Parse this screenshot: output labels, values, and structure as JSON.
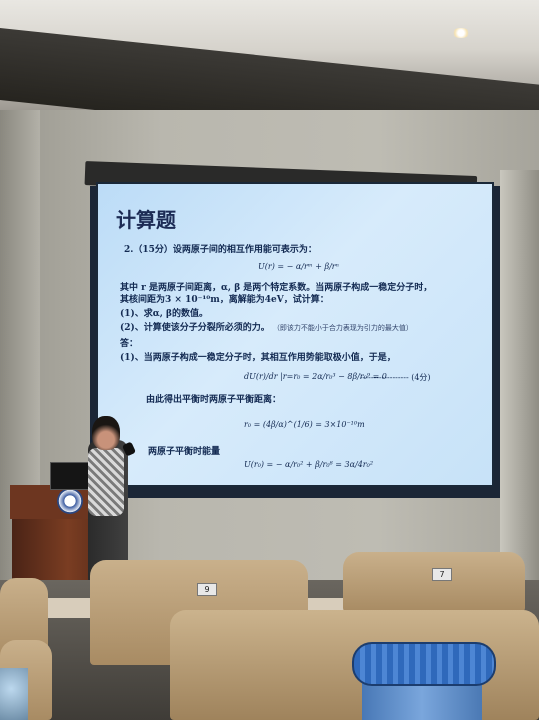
{
  "slide": {
    "title": "计算题",
    "problem": "2.（15分）设两原子间的相互作用能可表示为：",
    "eq1": "U(r) = − α/rᵐ + β/rⁿ",
    "line1": "其中 r 是两原子间距离，α, β 是两个特定系数。当两原子构成一稳定分子时，",
    "line2": "其核间距为3 × 10⁻¹⁰m，离解能为4eV，试计算：",
    "q1": "(1)、求α, β的数值。",
    "q2": "(2)、计算使该分子分裂所必须的力。",
    "q2_note": "（即该力不能小于合力表现为引力的最大值）",
    "answer_label": "答：",
    "a1": "(1)、当两原子构成一稳定分子时，其相互作用势能取极小值，于是，",
    "eq2": "dU(r)/dr |r=r₀ = 2α/r₀³ − 8β/r₀⁹ = 0",
    "score": "------------------ (4分)",
    "a2": "由此得出平衡时两原子平衡距离：",
    "eq3": "r₀ = (4β/α)^(1/6) = 3×10⁻¹⁰m",
    "a3": "两原子平衡时能量",
    "eq4": "U(r₀) = − α/r₀² + β/r₀⁸ = 3α/4r₀²"
  },
  "seats": {
    "label_1": "9",
    "label_2": "7"
  },
  "colors": {
    "slide_bg": "#c7e2f8",
    "slide_text": "#132a52",
    "seat": "#c9b08b",
    "podium": "#6d3620"
  }
}
